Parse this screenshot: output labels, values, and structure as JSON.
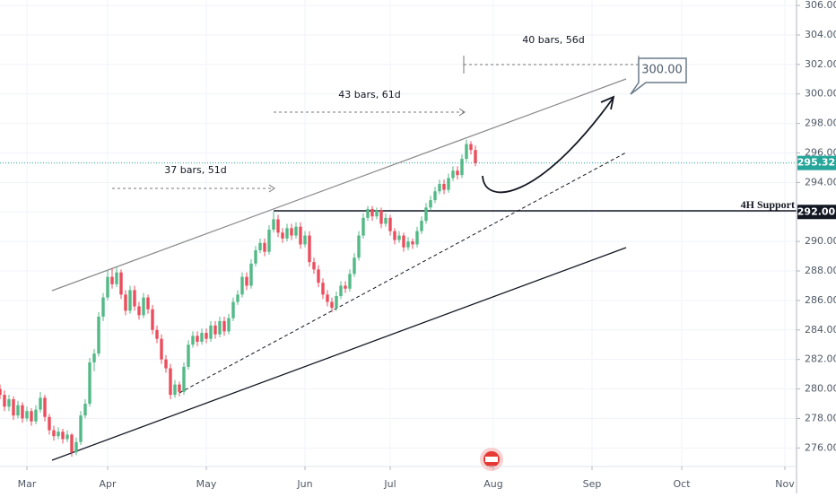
{
  "chart_data": {
    "type": "candlestick",
    "candles": [
      [
        -6,
        280.0,
        280.3,
        279.3,
        279.6
      ],
      [
        -5,
        279.6,
        279.9,
        278.5,
        278.8
      ],
      [
        -4,
        278.8,
        279.6,
        278.5,
        279.3
      ],
      [
        -3,
        279.3,
        279.5,
        277.9,
        278.2
      ],
      [
        -2,
        278.2,
        279.2,
        278.0,
        278.9
      ],
      [
        -1,
        278.9,
        279.1,
        277.7,
        278.0
      ],
      [
        0,
        278.0,
        278.8,
        277.8,
        278.5
      ],
      [
        1,
        278.5,
        278.7,
        277.5,
        277.8
      ],
      [
        2,
        277.8,
        278.9,
        277.6,
        278.6
      ],
      [
        3,
        278.6,
        279.8,
        278.4,
        279.4
      ],
      [
        4,
        279.4,
        279.6,
        277.8,
        278.1
      ],
      [
        5,
        278.1,
        278.3,
        276.9,
        277.2
      ],
      [
        6,
        277.2,
        277.5,
        276.5,
        276.8
      ],
      [
        7,
        276.8,
        277.4,
        276.6,
        277.1
      ],
      [
        8,
        277.1,
        277.3,
        276.3,
        276.6
      ],
      [
        9,
        276.6,
        277.2,
        276.4,
        276.9
      ],
      [
        10,
        276.9,
        277.0,
        275.4,
        275.7
      ],
      [
        11,
        275.7,
        276.7,
        275.5,
        276.4
      ],
      [
        12,
        276.4,
        278.5,
        276.2,
        278.2
      ],
      [
        13,
        278.2,
        279.3,
        278.0,
        279.0
      ],
      [
        14,
        279.0,
        282.1,
        278.8,
        281.8
      ],
      [
        15,
        281.8,
        282.7,
        281.2,
        282.4
      ],
      [
        16,
        282.4,
        285.2,
        282.2,
        284.9
      ],
      [
        17,
        284.9,
        286.5,
        284.6,
        286.2
      ],
      [
        18,
        286.2,
        288.0,
        286.0,
        287.6
      ],
      [
        19,
        287.6,
        288.2,
        286.8,
        287.1
      ],
      [
        20,
        287.1,
        288.3,
        286.9,
        287.9
      ],
      [
        21,
        287.9,
        288.1,
        286.1,
        286.4
      ],
      [
        22,
        286.4,
        286.7,
        285.0,
        285.3
      ],
      [
        23,
        285.3,
        287.0,
        285.1,
        286.7
      ],
      [
        24,
        286.7,
        287.0,
        285.3,
        285.6
      ],
      [
        25,
        285.6,
        285.9,
        284.7,
        285.0
      ],
      [
        26,
        285.0,
        286.5,
        284.8,
        286.2
      ],
      [
        27,
        286.2,
        286.4,
        285.1,
        285.4
      ],
      [
        28,
        285.4,
        285.7,
        283.7,
        284.0
      ],
      [
        29,
        284.0,
        284.3,
        283.1,
        283.4
      ],
      [
        30,
        283.4,
        283.7,
        281.7,
        282.0
      ],
      [
        31,
        282.0,
        282.3,
        281.1,
        281.4
      ],
      [
        32,
        281.4,
        281.7,
        279.3,
        279.6
      ],
      [
        33,
        279.6,
        280.6,
        279.4,
        280.3
      ],
      [
        34,
        280.3,
        280.5,
        279.5,
        279.8
      ],
      [
        35,
        279.8,
        281.8,
        279.6,
        281.5
      ],
      [
        36,
        281.5,
        283.3,
        281.3,
        283.0
      ],
      [
        37,
        283.0,
        283.9,
        282.8,
        283.6
      ],
      [
        38,
        283.6,
        283.9,
        282.9,
        283.2
      ],
      [
        39,
        283.2,
        284.1,
        283.0,
        283.8
      ],
      [
        40,
        283.8,
        284.1,
        283.1,
        283.4
      ],
      [
        41,
        283.4,
        284.6,
        283.2,
        284.3
      ],
      [
        42,
        284.3,
        284.6,
        283.4,
        283.7
      ],
      [
        43,
        283.7,
        284.9,
        283.5,
        284.6
      ],
      [
        44,
        284.6,
        284.9,
        283.6,
        283.9
      ],
      [
        45,
        283.9,
        285.1,
        283.7,
        284.8
      ],
      [
        46,
        284.8,
        286.2,
        284.6,
        285.9
      ],
      [
        47,
        285.9,
        286.7,
        285.7,
        286.4
      ],
      [
        48,
        286.4,
        287.9,
        286.2,
        287.6
      ],
      [
        49,
        287.6,
        287.9,
        286.7,
        287.0
      ],
      [
        50,
        287.0,
        288.8,
        286.8,
        288.5
      ],
      [
        51,
        288.5,
        289.7,
        288.3,
        289.4
      ],
      [
        52,
        289.4,
        290.2,
        289.2,
        289.9
      ],
      [
        53,
        289.9,
        290.2,
        289.0,
        289.3
      ],
      [
        54,
        289.3,
        291.1,
        289.1,
        290.8
      ],
      [
        55,
        290.8,
        292.0,
        290.6,
        291.5
      ],
      [
        56,
        291.5,
        291.8,
        290.3,
        290.6
      ],
      [
        57,
        290.6,
        290.9,
        289.9,
        290.2
      ],
      [
        58,
        290.2,
        291.2,
        290.0,
        290.9
      ],
      [
        59,
        290.9,
        291.2,
        290.1,
        290.4
      ],
      [
        60,
        290.4,
        291.3,
        290.2,
        291.0
      ],
      [
        61,
        291.0,
        291.3,
        289.5,
        289.8
      ],
      [
        62,
        289.8,
        290.7,
        289.6,
        290.4
      ],
      [
        63,
        290.4,
        290.7,
        288.3,
        288.6
      ],
      [
        64,
        288.6,
        288.9,
        287.8,
        288.1
      ],
      [
        65,
        288.1,
        288.4,
        286.9,
        287.2
      ],
      [
        66,
        287.2,
        287.5,
        286.1,
        286.4
      ],
      [
        67,
        286.4,
        286.7,
        285.6,
        285.9
      ],
      [
        68,
        285.9,
        286.2,
        285.2,
        285.5
      ],
      [
        69,
        285.5,
        286.6,
        285.3,
        286.3
      ],
      [
        70,
        286.3,
        287.3,
        286.1,
        287.0
      ],
      [
        71,
        287.0,
        287.3,
        286.5,
        286.8
      ],
      [
        72,
        286.8,
        288.1,
        286.6,
        287.8
      ],
      [
        73,
        287.8,
        289.2,
        287.6,
        288.9
      ],
      [
        74,
        288.9,
        290.7,
        288.7,
        290.4
      ],
      [
        75,
        290.4,
        291.9,
        290.2,
        291.6
      ],
      [
        76,
        291.6,
        292.4,
        291.4,
        292.2
      ],
      [
        77,
        292.2,
        292.4,
        291.4,
        291.7
      ],
      [
        78,
        291.7,
        292.3,
        291.5,
        292.1
      ],
      [
        79,
        292.1,
        292.3,
        290.9,
        291.2
      ],
      [
        80,
        291.2,
        291.9,
        291.0,
        291.6
      ],
      [
        81,
        291.6,
        291.8,
        290.4,
        290.7
      ],
      [
        82,
        290.7,
        290.9,
        289.8,
        290.1
      ],
      [
        83,
        290.1,
        290.7,
        289.9,
        290.4
      ],
      [
        84,
        290.4,
        290.6,
        289.3,
        289.6
      ],
      [
        85,
        289.6,
        290.3,
        289.4,
        290.0
      ],
      [
        86,
        290.0,
        290.2,
        289.5,
        289.8
      ],
      [
        87,
        289.8,
        291.0,
        289.6,
        290.7
      ],
      [
        88,
        290.7,
        291.7,
        290.5,
        291.4
      ],
      [
        89,
        291.4,
        292.6,
        291.2,
        292.3
      ],
      [
        90,
        292.3,
        293.1,
        292.1,
        292.8
      ],
      [
        91,
        292.8,
        293.7,
        292.6,
        293.4
      ],
      [
        92,
        293.4,
        294.2,
        293.2,
        293.9
      ],
      [
        93,
        293.9,
        294.2,
        293.2,
        293.5
      ],
      [
        94,
        293.5,
        294.6,
        293.3,
        294.3
      ],
      [
        95,
        294.3,
        295.1,
        294.1,
        294.8
      ],
      [
        96,
        294.8,
        295.1,
        294.2,
        294.5
      ],
      [
        97,
        294.5,
        295.9,
        294.3,
        295.6
      ],
      [
        98,
        295.6,
        296.9,
        295.4,
        296.6
      ],
      [
        99,
        296.6,
        296.8,
        295.9,
        296.2
      ],
      [
        100,
        296.2,
        296.5,
        295.1,
        295.32
      ]
    ],
    "up_color": "#53b987",
    "down_color": "#eb4d5c",
    "xlim": [
      -6,
      171.6
    ],
    "xticks": [
      {
        "value": 0,
        "label": "Mar"
      },
      {
        "value": 18,
        "label": "Apr"
      },
      {
        "value": 40,
        "label": "May"
      },
      {
        "value": 62,
        "label": "Jun"
      },
      {
        "value": 81,
        "label": "Jul"
      },
      {
        "value": 104,
        "label": "Aug"
      },
      {
        "value": 126,
        "label": "Sep"
      },
      {
        "value": 146,
        "label": "Oct"
      },
      {
        "value": 169,
        "label": "Nov"
      }
    ],
    "ylim": [
      275.35,
      306.37
    ],
    "yticks": [
      {
        "value": 276,
        "label": "276.00"
      },
      {
        "value": 278,
        "label": "278.00"
      },
      {
        "value": 280,
        "label": "280.00"
      },
      {
        "value": 282,
        "label": "282.00"
      },
      {
        "value": 284,
        "label": "284.00"
      },
      {
        "value": 286,
        "label": "286.00"
      },
      {
        "value": 288,
        "label": "288.00"
      },
      {
        "value": 290,
        "label": "290.00"
      },
      {
        "value": 292,
        "label": "292.00"
      },
      {
        "value": 294,
        "label": "294.00"
      },
      {
        "value": 296,
        "label": "296.00"
      },
      {
        "value": 298,
        "label": "298.00"
      },
      {
        "value": 300,
        "label": "300.00"
      },
      {
        "value": 302,
        "label": "302.00"
      },
      {
        "value": 304,
        "label": "304.00"
      },
      {
        "value": 306,
        "label": "306.00"
      }
    ],
    "grid": true,
    "price_labels": [
      {
        "value": 295.32,
        "label": "295.32",
        "color": "#26a69a"
      },
      {
        "value": 292,
        "label": "292.00",
        "color": "#131722"
      }
    ],
    "annotations": [
      "37 bars, 51d",
      "43 bars, 61d",
      "40 bars, 56d",
      "4H Support"
    ],
    "callout": "300.00"
  }
}
